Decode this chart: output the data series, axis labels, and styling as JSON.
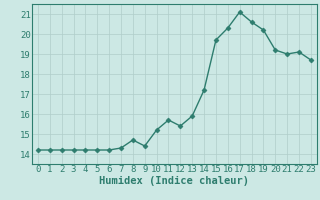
{
  "x": [
    0,
    1,
    2,
    3,
    4,
    5,
    6,
    7,
    8,
    9,
    10,
    11,
    12,
    13,
    14,
    15,
    16,
    17,
    18,
    19,
    20,
    21,
    22,
    23
  ],
  "y": [
    14.2,
    14.2,
    14.2,
    14.2,
    14.2,
    14.2,
    14.2,
    14.3,
    14.7,
    14.4,
    15.2,
    15.7,
    15.4,
    15.9,
    17.2,
    19.7,
    20.3,
    21.1,
    20.6,
    20.2,
    19.2,
    19.0,
    19.1,
    18.7
  ],
  "xlabel": "Humidex (Indice chaleur)",
  "xlim": [
    -0.5,
    23.5
  ],
  "ylim": [
    13.5,
    21.5
  ],
  "yticks": [
    14,
    15,
    16,
    17,
    18,
    19,
    20,
    21
  ],
  "xticks": [
    0,
    1,
    2,
    3,
    4,
    5,
    6,
    7,
    8,
    9,
    10,
    11,
    12,
    13,
    14,
    15,
    16,
    17,
    18,
    19,
    20,
    21,
    22,
    23
  ],
  "line_color": "#2e7d6e",
  "marker": "D",
  "marker_size": 2.5,
  "background_color": "#cce8e4",
  "grid_color": "#b0ceca",
  "xlabel_fontsize": 7.5,
  "tick_fontsize": 6.5,
  "line_width": 1.0
}
